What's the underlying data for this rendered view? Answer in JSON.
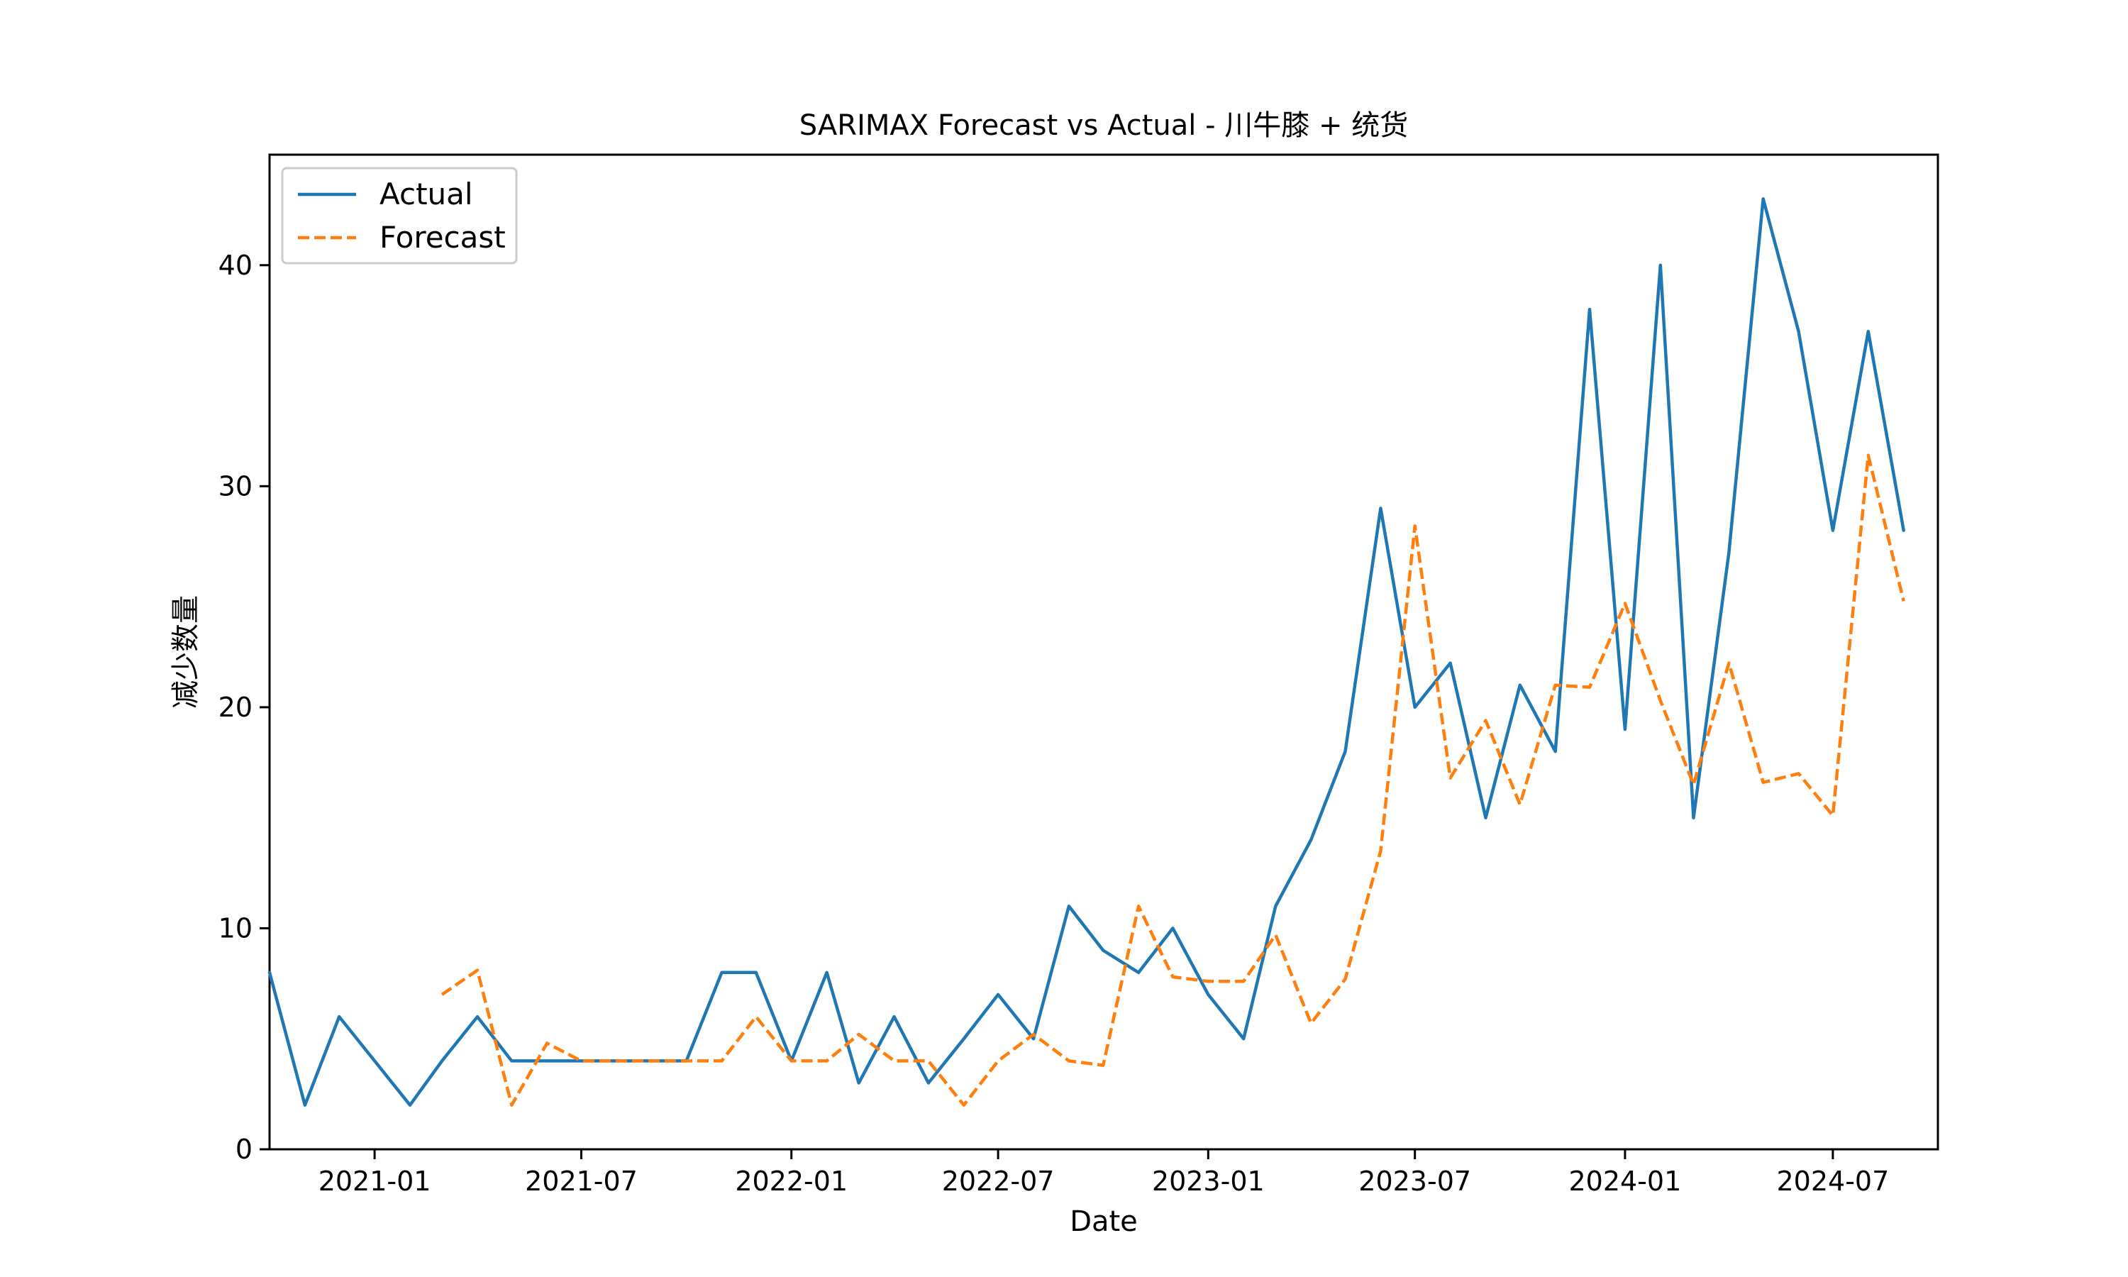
{
  "chart_data": {
    "type": "line",
    "title": "SARIMAX Forecast vs Actual - 川牛膝 + 统货",
    "xlabel": "Date",
    "ylabel": "减少数量",
    "ylim": [
      0,
      45
    ],
    "xlim": [
      "2020-10-01",
      "2024-10-01"
    ],
    "x_tick_labels": [
      "2021-01",
      "2021-07",
      "2022-01",
      "2022-07",
      "2023-01",
      "2023-07",
      "2024-01",
      "2024-07"
    ],
    "y_ticks": [
      0,
      10,
      20,
      30,
      40
    ],
    "grid": false,
    "legend_position": "upper-left",
    "series": [
      {
        "name": "Actual",
        "color": "#1f77b4",
        "style": "solid",
        "points": [
          [
            "2020-10",
            8
          ],
          [
            "2020-11",
            2
          ],
          [
            "2020-12",
            6
          ],
          [
            "2021-01",
            4
          ],
          [
            "2021-02",
            2
          ],
          [
            "2021-03",
            4
          ],
          [
            "2021-04",
            6
          ],
          [
            "2021-05",
            4
          ],
          [
            "2021-06",
            4
          ],
          [
            "2021-07",
            4
          ],
          [
            "2021-08",
            4
          ],
          [
            "2021-09",
            4
          ],
          [
            "2021-10",
            4
          ],
          [
            "2021-11",
            8
          ],
          [
            "2021-12",
            8
          ],
          [
            "2022-01",
            4
          ],
          [
            "2022-02",
            8
          ],
          [
            "2022-03",
            3
          ],
          [
            "2022-04",
            6
          ],
          [
            "2022-05",
            3
          ],
          [
            "2022-06",
            5
          ],
          [
            "2022-07",
            7
          ],
          [
            "2022-08",
            5
          ],
          [
            "2022-09",
            11
          ],
          [
            "2022-10",
            9
          ],
          [
            "2022-11",
            8
          ],
          [
            "2022-12",
            10
          ],
          [
            "2023-01",
            7
          ],
          [
            "2023-02",
            5
          ],
          [
            "2023-03",
            11
          ],
          [
            "2023-04",
            14
          ],
          [
            "2023-05",
            18
          ],
          [
            "2023-06",
            29
          ],
          [
            "2023-07",
            20
          ],
          [
            "2023-08",
            22
          ],
          [
            "2023-09",
            15
          ],
          [
            "2023-10",
            21
          ],
          [
            "2023-11",
            18
          ],
          [
            "2023-12",
            38
          ],
          [
            "2024-01",
            19
          ],
          [
            "2024-02",
            40
          ],
          [
            "2024-03",
            15
          ],
          [
            "2024-04",
            27
          ],
          [
            "2024-05",
            43
          ],
          [
            "2024-06",
            37
          ],
          [
            "2024-07",
            28
          ],
          [
            "2024-08",
            37
          ],
          [
            "2024-09",
            28
          ]
        ]
      },
      {
        "name": "Forecast",
        "color": "#ff7f0e",
        "style": "dashed",
        "points": [
          [
            "2021-03",
            7
          ],
          [
            "2021-04",
            8.1
          ],
          [
            "2021-05",
            2
          ],
          [
            "2021-06",
            4.8
          ],
          [
            "2021-07",
            4
          ],
          [
            "2021-08",
            4
          ],
          [
            "2021-09",
            4
          ],
          [
            "2021-10",
            4
          ],
          [
            "2021-11",
            4
          ],
          [
            "2021-12",
            6
          ],
          [
            "2022-01",
            4
          ],
          [
            "2022-02",
            4
          ],
          [
            "2022-03",
            5.2
          ],
          [
            "2022-04",
            4
          ],
          [
            "2022-05",
            4
          ],
          [
            "2022-06",
            2
          ],
          [
            "2022-07",
            4
          ],
          [
            "2022-08",
            5.2
          ],
          [
            "2022-09",
            4
          ],
          [
            "2022-10",
            3.8
          ],
          [
            "2022-11",
            11
          ],
          [
            "2022-12",
            7.8
          ],
          [
            "2023-01",
            7.6
          ],
          [
            "2023-02",
            7.6
          ],
          [
            "2023-03",
            9.7
          ],
          [
            "2023-04",
            5.7
          ],
          [
            "2023-05",
            7.7
          ],
          [
            "2023-06",
            13.5
          ],
          [
            "2023-07",
            28.2
          ],
          [
            "2023-08",
            16.8
          ],
          [
            "2023-09",
            19.4
          ],
          [
            "2023-10",
            15.6
          ],
          [
            "2023-11",
            21
          ],
          [
            "2023-12",
            20.9
          ],
          [
            "2024-01",
            24.7
          ],
          [
            "2024-02",
            20.3
          ],
          [
            "2024-03",
            16.5
          ],
          [
            "2024-04",
            22
          ],
          [
            "2024-05",
            16.6
          ],
          [
            "2024-06",
            17
          ],
          [
            "2024-07",
            15.1
          ],
          [
            "2024-08",
            31.4
          ],
          [
            "2024-09",
            24.8
          ]
        ]
      }
    ]
  }
}
